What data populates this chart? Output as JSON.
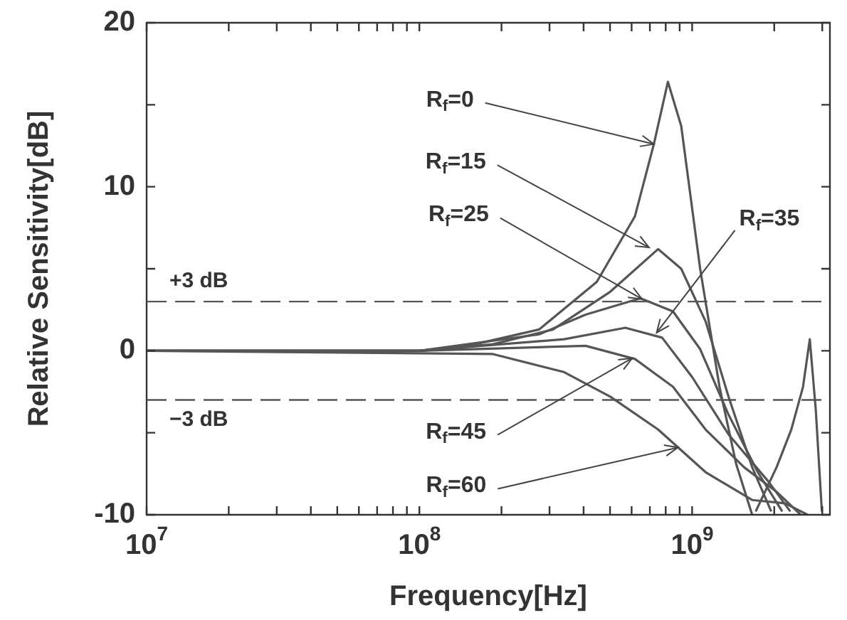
{
  "chart_data": {
    "type": "line",
    "xlabel": "Frequency[Hz]",
    "ylabel": "Relative Sensitivity[dB]",
    "log": "x",
    "legend": false,
    "marker": "none",
    "line_style": "solid",
    "xlim": [
      10000000.0,
      3200000000.0
    ],
    "ylim": [
      -10,
      20
    ],
    "xticks": [
      {
        "value": 10000000.0,
        "label": "10$^{7}$"
      },
      {
        "value": 20000000.0,
        "label": null
      },
      {
        "value": 30000000.0,
        "label": null
      },
      {
        "value": 40000000.0,
        "label": null
      },
      {
        "value": 50000000.0,
        "label": null
      },
      {
        "value": 60000000.0,
        "label": null
      },
      {
        "value": 70000000.0,
        "label": null
      },
      {
        "value": 80000000.0,
        "label": null
      },
      {
        "value": 90000000.0,
        "label": null
      },
      {
        "value": 100000000.0,
        "label": "10$^{8}$"
      },
      {
        "value": 200000000.0,
        "label": null
      },
      {
        "value": 300000000.0,
        "label": null
      },
      {
        "value": 400000000.0,
        "label": null
      },
      {
        "value": 500000000.0,
        "label": null
      },
      {
        "value": 600000000.0,
        "label": null
      },
      {
        "value": 700000000.0,
        "label": null
      },
      {
        "value": 800000000.0,
        "label": null
      },
      {
        "value": 900000000.0,
        "label": null
      },
      {
        "value": 1000000000.0,
        "label": "10$^{9}$"
      },
      {
        "value": 2000000000.0,
        "label": null
      },
      {
        "value": 3000000000.0,
        "label": null
      }
    ],
    "yticks": [
      -10,
      {
        "value": -5,
        "label": null
      },
      0,
      {
        "value": 5,
        "label": null
      },
      10,
      {
        "value": 15,
        "label": null
      },
      20
    ],
    "ref_lines": [
      {
        "axis": "y",
        "value": 3,
        "label": "+3 dB",
        "color": "#555555",
        "line_style": "dashed"
      },
      {
        "axis": "y",
        "value": -3,
        "label": "−3 dB",
        "color": "#555555",
        "line_style": "dashed"
      }
    ],
    "annotations": [
      {
        "text": "R$_{f}$=0",
        "x": 724000000.0,
        "y": 12.6
      },
      {
        "text": "R$_{f}$=15",
        "x": 695000000.0,
        "y": 6.3
      },
      {
        "text": "R$_{f}$=25",
        "x": 655000000.0,
        "y": 3.15
      },
      {
        "text": "R$_{f}$=35",
        "x": 741000000.0,
        "y": 1.1
      },
      {
        "text": "R$_{f}$=45",
        "x": 603000000.0,
        "y": -0.45
      },
      {
        "text": "R$_{f}$=60",
        "x": 887000000.0,
        "y": -5.9
      }
    ],
    "series": [
      {
        "color": "#555555",
        "x": [
          10000000.0,
          100000000.0,
          151000000.0,
          275000000.0,
          447000000.0,
          617000000.0,
          724000000.0,
          815000000.0,
          912000000.0,
          1070000000.0,
          1260000000.0,
          1450000000.0,
          1660000000.0,
          1680000000.0,
          1710000000.0,
          2040000000.0,
          2310000000.0,
          2550000000.0,
          2700000000.0,
          2840000000.0,
          2990000000.0
        ],
        "values": [
          0,
          0,
          0.3,
          1.3,
          4.2,
          8.2,
          12.6,
          16.4,
          13.7,
          5.0,
          -2.2,
          -6.9,
          -10,
          null,
          -9.8,
          -7.1,
          -4.8,
          -2.2,
          0.7,
          -3.6,
          -9.8
        ]
      },
      {
        "color": "#555555",
        "x": [
          10000000.0,
          100000000.0,
          186000000.0,
          309000000.0,
          501000000.0,
          750000000.0,
          912000000.0,
          1120000000.0,
          1360000000.0,
          1660000000.0,
          1950000000.0
        ],
        "values": [
          0,
          0,
          0.4,
          1.3,
          3.6,
          6.2,
          5.0,
          1.8,
          -2.8,
          -7.1,
          -9.8
        ]
      },
      {
        "color": "#555555",
        "x": [
          10000000.0,
          100000000.0,
          275000000.0,
          407000000.0,
          646000000.0,
          851000000.0,
          1070000000.0,
          1360000000.0,
          1740000000.0,
          2140000000.0
        ],
        "values": [
          0,
          0,
          1.0,
          2.2,
          3.2,
          2.4,
          0.1,
          -3.9,
          -7.4,
          -9.8
        ]
      },
      {
        "color": "#555555",
        "x": [
          10000000.0,
          100000000.0,
          339000000.0,
          569000000.0,
          776000000.0,
          1000000000.0,
          1360000000.0,
          1910000000.0,
          2290000000.0
        ],
        "values": [
          0,
          0,
          0.7,
          1.4,
          0.8,
          -1.6,
          -5.1,
          -8.0,
          -9.8
        ]
      },
      {
        "color": "#555555",
        "x": [
          10000000.0,
          100000000.0,
          407000000.0,
          617000000.0,
          851000000.0,
          1120000000.0,
          1550000000.0,
          2040000000.0,
          2500000000.0
        ],
        "values": [
          0,
          0,
          0.3,
          -0.5,
          -2.2,
          -4.8,
          -7.1,
          -8.6,
          -10
        ]
      },
      {
        "color": "#555555",
        "x": [
          10000000.0,
          186000000.0,
          339000000.0,
          501000000.0,
          750000000.0,
          1120000000.0,
          1660000000.0,
          2190000000.0,
          2650000000.0
        ],
        "values": [
          0,
          -0.2,
          -1.3,
          -2.8,
          -4.8,
          -7.4,
          -9.1,
          -9.3,
          -10
        ]
      }
    ]
  }
}
